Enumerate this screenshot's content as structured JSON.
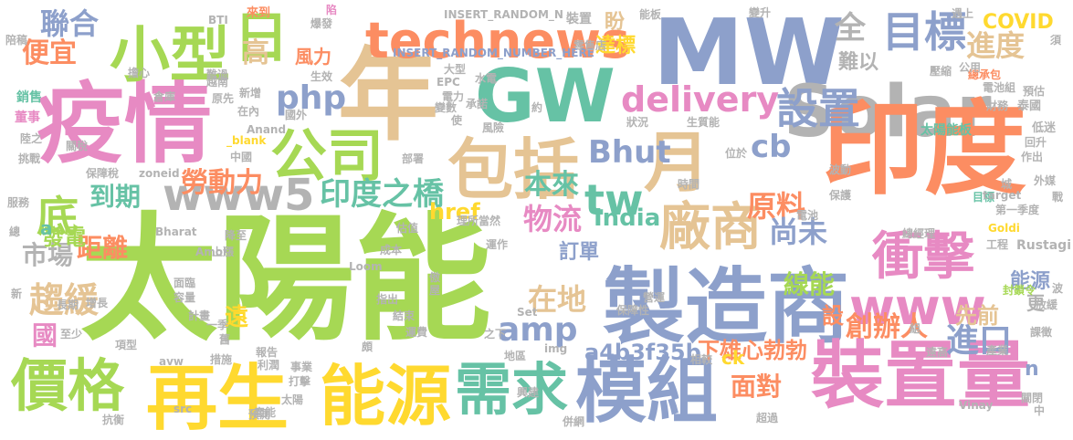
{
  "palette": {
    "green": "#a6d854",
    "pink": "#e78ac3",
    "orange": "#fc8d62",
    "teal": "#66c2a5",
    "blue": "#8da0cb",
    "tan": "#e5c494",
    "yellow": "#ffd92f",
    "gray": "#b3b3b3"
  },
  "words": [
    {
      "text": "太陽能",
      "color": "green"
    },
    {
      "text": "疫情",
      "color": "pink"
    },
    {
      "text": "年",
      "color": "tan"
    },
    {
      "text": "GW",
      "color": "teal"
    },
    {
      "text": "MW",
      "color": "blue"
    },
    {
      "text": "Solar",
      "color": "gray"
    },
    {
      "text": "印度",
      "color": "orange"
    },
    {
      "text": "製造商",
      "color": "blue"
    },
    {
      "text": "裝置量",
      "color": "pink"
    },
    {
      "text": "模組",
      "color": "blue"
    },
    {
      "text": "再生",
      "color": "yellow"
    },
    {
      "text": "能源",
      "color": "yellow"
    },
    {
      "text": "需求",
      "color": "teal"
    },
    {
      "text": "價格",
      "color": "green"
    },
    {
      "text": "包括",
      "color": "tan"
    },
    {
      "text": "月",
      "color": "tan"
    },
    {
      "text": "小型",
      "color": "green"
    },
    {
      "text": "日",
      "color": "green"
    },
    {
      "text": "公司",
      "color": "green"
    },
    {
      "text": "technews",
      "color": "orange"
    },
    {
      "text": "目標",
      "color": "blue"
    },
    {
      "text": "www5",
      "color": "gray"
    },
    {
      "text": "廠商",
      "color": "tan"
    },
    {
      "text": "衝擊",
      "color": "pink"
    },
    {
      "text": "www",
      "color": "pink"
    },
    {
      "text": "delivery",
      "color": "pink"
    },
    {
      "text": "php",
      "color": "blue"
    },
    {
      "text": "設置",
      "color": "blue"
    },
    {
      "text": "全",
      "color": "gray"
    },
    {
      "text": "進度",
      "color": "tan"
    },
    {
      "text": "聯合",
      "color": "blue"
    },
    {
      "text": "便宜",
      "color": "orange"
    },
    {
      "text": "高",
      "color": "tan"
    },
    {
      "text": "風力",
      "color": "orange"
    },
    {
      "text": "難以",
      "color": "gray"
    },
    {
      "text": "COVID",
      "color": "yellow"
    },
    {
      "text": "達標",
      "color": "yellow"
    },
    {
      "text": "盼",
      "color": "tan"
    },
    {
      "text": "Bhut",
      "color": "blue"
    },
    {
      "text": "cb",
      "color": "blue"
    },
    {
      "text": "tw",
      "color": "teal"
    },
    {
      "text": "到期",
      "color": "teal"
    },
    {
      "text": "本來",
      "color": "teal"
    },
    {
      "text": "物流",
      "color": "pink"
    },
    {
      "text": "印度之橋",
      "color": "teal"
    },
    {
      "text": "勞動力",
      "color": "orange"
    },
    {
      "text": "底",
      "color": "green"
    },
    {
      "text": "原料",
      "color": "orange"
    },
    {
      "text": "India",
      "color": "teal"
    },
    {
      "text": "尚未",
      "color": "blue"
    },
    {
      "text": "市場",
      "color": "gray"
    },
    {
      "text": "距離",
      "color": "orange"
    },
    {
      "text": "趨緩",
      "color": "tan"
    },
    {
      "text": "amp",
      "color": "blue"
    },
    {
      "text": "在地",
      "color": "tan"
    },
    {
      "text": "訂單",
      "color": "blue"
    },
    {
      "text": "線能",
      "color": "green"
    },
    {
      "text": "進口",
      "color": "blue"
    },
    {
      "text": "創辦人",
      "color": "orange"
    },
    {
      "text": "先前",
      "color": "tan"
    },
    {
      "text": "a4b3f35b",
      "color": "blue"
    },
    {
      "text": "下雄心勃勃",
      "color": "orange"
    },
    {
      "text": "面對",
      "color": "orange"
    },
    {
      "text": "href",
      "color": "yellow"
    },
    {
      "text": "ck",
      "color": "yellow"
    },
    {
      "text": "發電",
      "color": "green"
    },
    {
      "text": "國",
      "color": "pink"
    },
    {
      "text": "遠",
      "color": "yellow"
    },
    {
      "text": "a",
      "color": "teal"
    },
    {
      "text": "設",
      "color": "orange"
    },
    {
      "text": "n",
      "color": "blue"
    },
    {
      "text": "能源",
      "color": "blue"
    },
    {
      "text": "更",
      "color": "gray"
    },
    {
      "text": "INSERT_RANDOM_N",
      "color": "gray"
    },
    {
      "text": "INSERT_RANDOM_NUMBER_HERE",
      "color": "blue"
    },
    {
      "text": "BTI",
      "color": "gray"
    },
    {
      "text": "來到",
      "color": "orange"
    },
    {
      "text": "裝置",
      "color": "gray"
    },
    {
      "text": "爆發",
      "color": "gray"
    },
    {
      "text": "陷",
      "color": "pink"
    },
    {
      "text": "變升",
      "color": "gray"
    },
    {
      "text": "遇上",
      "color": "gray"
    },
    {
      "text": "能板",
      "color": "gray"
    },
    {
      "text": "總承包",
      "color": "orange"
    },
    {
      "text": "預估",
      "color": "gray"
    },
    {
      "text": "泰國",
      "color": "gray"
    },
    {
      "text": "銷售",
      "color": "teal"
    },
    {
      "text": "董事",
      "color": "pink"
    },
    {
      "text": "倉庫",
      "color": "gray"
    },
    {
      "text": "原先",
      "color": "gray"
    },
    {
      "text": "太陽能板",
      "color": "teal"
    },
    {
      "text": "低迷",
      "color": "gray"
    },
    {
      "text": "作出",
      "color": "gray"
    },
    {
      "text": "目標",
      "color": "teal"
    },
    {
      "text": "外媒",
      "color": "gray"
    },
    {
      "text": "工程",
      "color": "gray"
    },
    {
      "text": "服務",
      "color": "gray"
    },
    {
      "text": "第一季度",
      "color": "gray"
    },
    {
      "text": "總經理",
      "color": "gray"
    },
    {
      "text": "Rustagi",
      "color": "gray"
    },
    {
      "text": "Goldi",
      "color": "yellow"
    },
    {
      "text": "封鎖令",
      "color": "green"
    },
    {
      "text": "放緩",
      "color": "gray"
    },
    {
      "text": "課徵",
      "color": "gray"
    },
    {
      "text": "產業",
      "color": "gray"
    },
    {
      "text": "關閉",
      "color": "gray"
    },
    {
      "text": "Vinay",
      "color": "gray"
    },
    {
      "text": "超過",
      "color": "gray"
    },
    {
      "text": "抗衡",
      "color": "gray"
    },
    {
      "text": "Anand",
      "color": "gray"
    },
    {
      "text": "_blank",
      "color": "yellow"
    },
    {
      "text": "在內",
      "color": "gray"
    },
    {
      "text": "新增",
      "color": "gray"
    },
    {
      "text": "國外",
      "color": "gray"
    },
    {
      "text": "EPC",
      "color": "gray"
    },
    {
      "text": "水電",
      "color": "gray"
    },
    {
      "text": "電力",
      "color": "gray"
    },
    {
      "text": "大型",
      "color": "gray"
    },
    {
      "text": "變數",
      "color": "gray"
    },
    {
      "text": "承諾",
      "color": "gray"
    },
    {
      "text": "風險",
      "color": "gray"
    },
    {
      "text": "狀況",
      "color": "gray"
    },
    {
      "text": "生質能",
      "color": "gray"
    },
    {
      "text": "位於",
      "color": "gray"
    },
    {
      "text": "時間",
      "color": "gray"
    },
    {
      "text": "波動",
      "color": "gray"
    },
    {
      "text": "保護",
      "color": "gray"
    },
    {
      "text": "電池",
      "color": "gray"
    },
    {
      "text": "中國",
      "color": "gray"
    },
    {
      "text": "保障稅",
      "color": "gray"
    },
    {
      "text": "zoneid",
      "color": "gray"
    },
    {
      "text": "部署",
      "color": "gray"
    },
    {
      "text": "理所當然",
      "color": "gray"
    },
    {
      "text": "估值",
      "color": "gray"
    },
    {
      "text": "運作",
      "color": "gray"
    },
    {
      "text": "成本",
      "color": "gray"
    },
    {
      "text": "Bharat",
      "color": "gray"
    },
    {
      "text": "Amol",
      "color": "gray"
    },
    {
      "text": "上漲",
      "color": "gray"
    },
    {
      "text": "降至",
      "color": "gray"
    },
    {
      "text": "Loom",
      "color": "gray"
    },
    {
      "text": "面臨",
      "color": "gray"
    },
    {
      "text": "容量",
      "color": "gray"
    },
    {
      "text": "計畫",
      "color": "gray"
    },
    {
      "text": "一季",
      "color": "gray"
    },
    {
      "text": "指出",
      "color": "gray"
    },
    {
      "text": "結束",
      "color": "gray"
    },
    {
      "text": "Set",
      "color": "gray"
    },
    {
      "text": "img",
      "color": "gray"
    },
    {
      "text": "地區",
      "color": "gray"
    },
    {
      "text": "相較",
      "color": "gray"
    },
    {
      "text": "保障性",
      "color": "gray"
    },
    {
      "text": "營運",
      "color": "gray"
    },
    {
      "text": "運費",
      "color": "gray"
    },
    {
      "text": "報告",
      "color": "gray"
    },
    {
      "text": "利潤",
      "color": "gray"
    },
    {
      "text": "措施",
      "color": "gray"
    },
    {
      "text": "事業",
      "color": "gray"
    },
    {
      "text": "打擊",
      "color": "gray"
    },
    {
      "text": "太陽",
      "color": "gray"
    },
    {
      "text": "預測",
      "color": "gray"
    },
    {
      "text": "產能",
      "color": "gray"
    },
    {
      "text": "興建",
      "color": "gray"
    },
    {
      "text": "併網",
      "color": "gray"
    },
    {
      "text": "avw",
      "color": "gray"
    },
    {
      "text": "零售店",
      "color": "gray"
    },
    {
      "text": "生效",
      "color": "gray"
    },
    {
      "text": "擔心",
      "color": "gray"
    },
    {
      "text": "越南",
      "color": "gray"
    },
    {
      "text": "難過",
      "color": "gray"
    },
    {
      "text": "陸之",
      "color": "gray"
    },
    {
      "text": "挑戰",
      "color": "gray"
    },
    {
      "text": "關稅",
      "color": "gray"
    },
    {
      "text": "增長",
      "color": "gray"
    },
    {
      "text": "長期",
      "color": "gray"
    },
    {
      "text": "至少",
      "color": "gray"
    },
    {
      "text": "項型",
      "color": "gray"
    },
    {
      "text": "公用",
      "color": "gray"
    },
    {
      "text": "電池組",
      "color": "gray"
    },
    {
      "text": "財務",
      "color": "gray"
    },
    {
      "text": "壓縮",
      "color": "gray"
    },
    {
      "text": "回升",
      "color": "gray"
    },
    {
      "text": "target",
      "color": "gray"
    },
    {
      "text": "城",
      "color": "gray"
    },
    {
      "text": "戰",
      "color": "gray"
    },
    {
      "text": "中",
      "color": "gray"
    },
    {
      "text": "波",
      "color": "gray"
    },
    {
      "text": "總",
      "color": "gray"
    },
    {
      "text": "新",
      "color": "gray"
    },
    {
      "text": "src",
      "color": "gray"
    },
    {
      "text": "舊",
      "color": "gray"
    },
    {
      "text": "頗",
      "color": "gray"
    },
    {
      "text": "之下",
      "color": "gray"
    },
    {
      "text": "使",
      "color": "gray"
    },
    {
      "text": "約",
      "color": "gray"
    },
    {
      "text": "傲",
      "color": "gray"
    },
    {
      "text": "屋",
      "color": "gray"
    },
    {
      "text": "須",
      "color": "gray"
    },
    {
      "text": "陪稿",
      "color": "gray"
    },
    {
      "text": "組",
      "color": "gray"
    },
    {
      "text": "遠高",
      "color": "gray"
    }
  ]
}
